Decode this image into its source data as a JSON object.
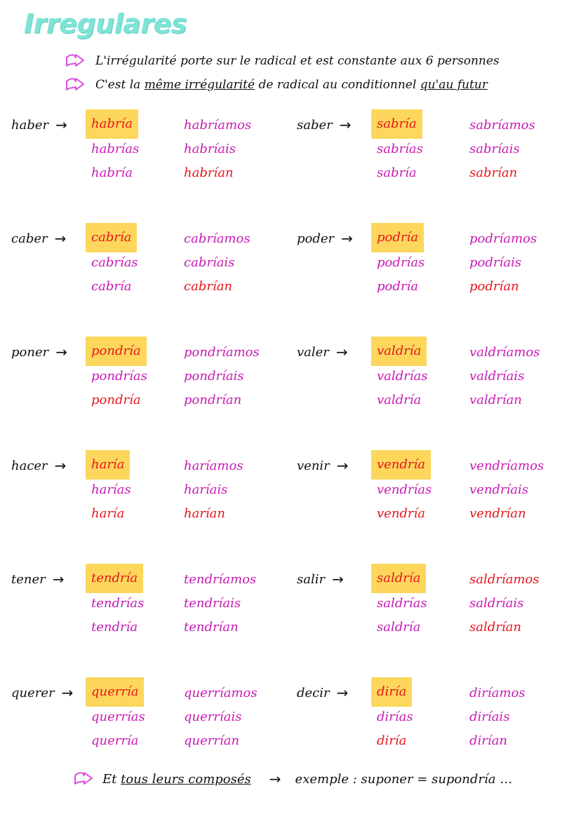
{
  "title": "Irregulares",
  "notes": [
    {
      "text_a": "L'irrégularité porte sur le radical et est constante aux 6 personnes"
    },
    {
      "text_a": "C'est la ",
      "text_u1": "même irrégularité",
      "text_b": " de radical au conditionnel ",
      "text_u2": "qu'au futur"
    }
  ],
  "arrow_symbol": "→",
  "verbs": [
    {
      "name": "haber",
      "forms": [
        "habría",
        "habrías",
        "habría",
        "habríamos",
        "habríais",
        "habrían"
      ]
    },
    {
      "name": "saber",
      "forms": [
        "sabría",
        "sabrías",
        "sabría",
        "sabríamos",
        "sabríais",
        "sabrían"
      ]
    },
    {
      "name": "caber",
      "forms": [
        "cabría",
        "cabrías",
        "cabría",
        "cabríamos",
        "cabríais",
        "cabrían"
      ]
    },
    {
      "name": "poder",
      "forms": [
        "podría",
        "podrías",
        "podría",
        "podríamos",
        "podríais",
        "podrían"
      ]
    },
    {
      "name": "poner",
      "forms": [
        "pondría",
        "pondrías",
        "pondría",
        "pondríamos",
        "pondríais",
        "pondrían"
      ]
    },
    {
      "name": "valer",
      "forms": [
        "valdría",
        "valdrías",
        "valdría",
        "valdríamos",
        "valdríais",
        "valdrían"
      ]
    },
    {
      "name": "hacer",
      "forms": [
        "haría",
        "harías",
        "haría",
        "haríamos",
        "haríais",
        "harían"
      ]
    },
    {
      "name": "venir",
      "forms": [
        "vendría",
        "vendrías",
        "vendría",
        "vendríamos",
        "vendríais",
        "vendrían"
      ]
    },
    {
      "name": "tener",
      "forms": [
        "tendría",
        "tendrías",
        "tendría",
        "tendríamos",
        "tendríais",
        "tendrían"
      ]
    },
    {
      "name": "salir",
      "forms": [
        "saldría",
        "saldrías",
        "saldría",
        "saldríamos",
        "saldríais",
        "saldrían"
      ]
    },
    {
      "name": "querer",
      "forms": [
        "querría",
        "querrías",
        "querría",
        "querríamos",
        "querríais",
        "querrían"
      ]
    },
    {
      "name": "decir",
      "forms": [
        "diría",
        "dirías",
        "diría",
        "diríamos",
        "diríais",
        "dirían"
      ]
    }
  ],
  "footer": {
    "text_a": "Et ",
    "text_u": "tous leurs composés",
    "text_b": "exemple : suponer = supondría …"
  },
  "colors": {
    "title": "#7fe3d6",
    "highlight": "#fcd75c",
    "red": "#e8141c",
    "magenta": "#c81ab4",
    "arrow_icon": "#d84fe0"
  }
}
